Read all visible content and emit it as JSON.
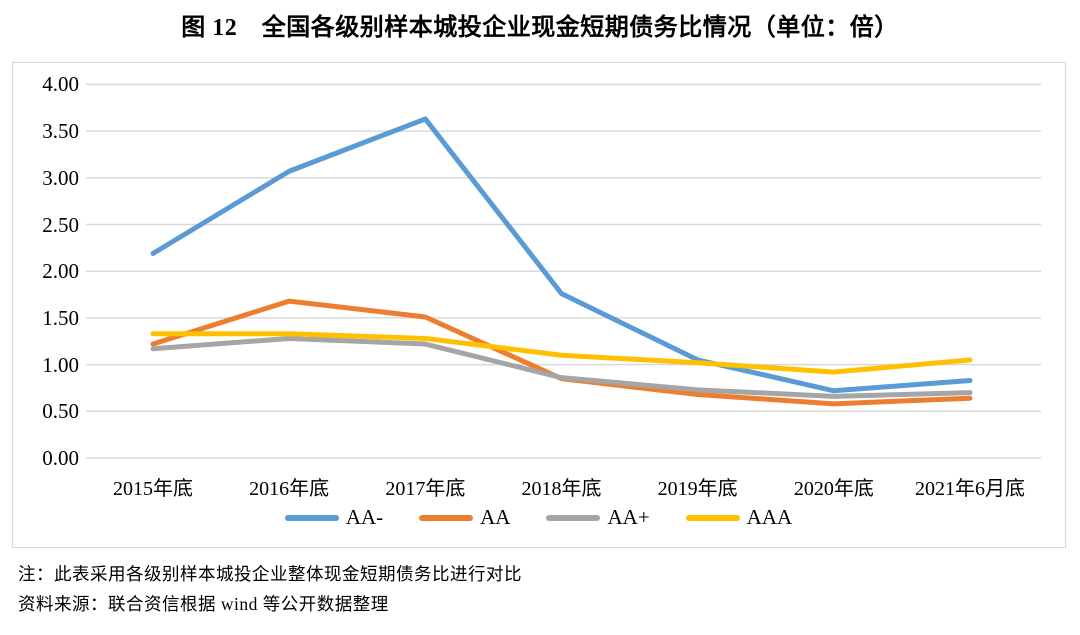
{
  "title": "图 12　全国各级别样本城投企业现金短期债务比情况（单位：倍）",
  "notes": {
    "note": "注：此表采用各级别样本城投企业整体现金短期债务比进行对比",
    "source": "资料来源：联合资信根据 wind 等公开数据整理"
  },
  "colors": {
    "aa_minus": "#5B9BD5",
    "aa": "#ED7D31",
    "aa_plus": "#A5A5A5",
    "aaa": "#FFC000",
    "gridline": "#D9D9D9",
    "chart_border": "#D6D6D6",
    "text": "#000000"
  },
  "chart_data": {
    "type": "line",
    "title": "图 12　全国各级别样本城投企业现金短期债务比情况（单位：倍）",
    "categories": [
      "2015年底",
      "2016年底",
      "2017年底",
      "2018年底",
      "2019年底",
      "2020年底",
      "2021年6月底"
    ],
    "series": [
      {
        "name": "AA-",
        "color": "#5B9BD5",
        "values": [
          2.19,
          3.07,
          3.63,
          1.76,
          1.05,
          0.72,
          0.83
        ]
      },
      {
        "name": "AA",
        "color": "#ED7D31",
        "values": [
          1.22,
          1.68,
          1.51,
          0.85,
          0.68,
          0.58,
          0.64
        ]
      },
      {
        "name": "AA+",
        "color": "#A5A5A5",
        "values": [
          1.17,
          1.28,
          1.22,
          0.86,
          0.73,
          0.66,
          0.7
        ]
      },
      {
        "name": "AAA",
        "color": "#FFC000",
        "values": [
          1.33,
          1.33,
          1.28,
          1.1,
          1.02,
          0.92,
          1.05
        ]
      }
    ],
    "xlabel": "",
    "ylabel": "",
    "ylim": [
      0,
      4
    ],
    "ytick_step": 0.5,
    "ytick_labels": [
      "4.00",
      "3.50",
      "3.00",
      "2.50",
      "2.00",
      "1.50",
      "1.00",
      "0.50",
      "0.00"
    ],
    "grid": true,
    "legend_position": "bottom"
  }
}
